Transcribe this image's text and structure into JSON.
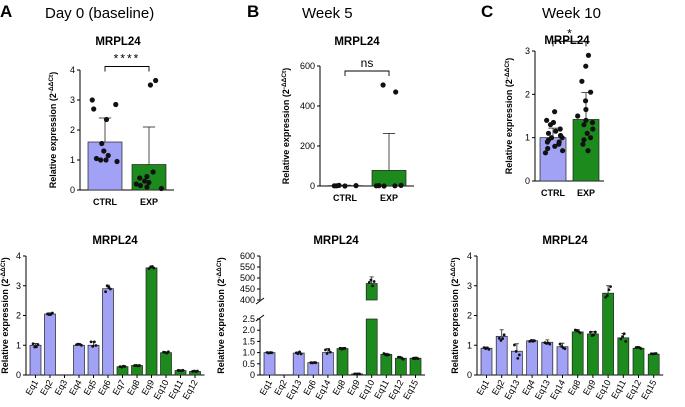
{
  "colors": {
    "ctrl": "#a1a1f6",
    "exp": "#1d8a1d",
    "point": "#111111",
    "axis": "#000000"
  },
  "ylabel": "Relative expression (2",
  "ylabel_sup": "-ΔΔCt",
  "panels": [
    {
      "label": "A",
      "heading": "Day 0 (baseline)"
    },
    {
      "label": "B",
      "heading": "Week 5"
    },
    {
      "label": "C",
      "heading": "Week 10"
    }
  ],
  "chart_data": [
    {
      "id": "A-top",
      "type": "bar",
      "title": "MRPL24",
      "categories": [
        "CTRL",
        "EXP"
      ],
      "group": [
        "ctrl",
        "exp"
      ],
      "values": [
        1.6,
        0.85
      ],
      "sd": [
        0.8,
        1.25
      ],
      "points": [
        [
          3.0,
          2.85,
          2.7,
          2.35,
          1.55,
          1.3,
          1.15,
          1.05,
          1.0,
          1.0,
          0.95
        ],
        [
          3.65,
          3.5,
          0.6,
          0.45,
          0.4,
          0.3,
          0.25,
          0.2,
          0.15,
          0.1,
          0.05
        ]
      ],
      "ylim": [
        0,
        4
      ],
      "yticks": [
        0,
        1,
        2,
        3,
        4
      ],
      "significance": "****"
    },
    {
      "id": "B-top",
      "type": "bar",
      "title": "MRPL24",
      "categories": [
        "CTRL",
        "EXP"
      ],
      "group": [
        "ctrl",
        "exp"
      ],
      "values": [
        2,
        78
      ],
      "sd": [
        2,
        185
      ],
      "points": [
        [
          3,
          2,
          1,
          1,
          0
        ],
        [
          505,
          470,
          3,
          2,
          1,
          1,
          0
        ]
      ],
      "ylim": [
        0,
        600
      ],
      "yticks": [
        0,
        200,
        400,
        600
      ],
      "significance": "ns"
    },
    {
      "id": "C-top",
      "type": "bar",
      "title": "MRPL24",
      "categories": [
        "CTRL",
        "EXP"
      ],
      "group": [
        "ctrl",
        "exp"
      ],
      "values": [
        1.0,
        1.42
      ],
      "sd": [
        0.22,
        0.62
      ],
      "points": [
        [
          1.6,
          1.4,
          1.35,
          1.3,
          1.2,
          1.15,
          1.1,
          1.05,
          1.0,
          1.0,
          0.95,
          0.9,
          0.9,
          0.85,
          0.8,
          0.75,
          0.7,
          0.65
        ],
        [
          2.9,
          2.65,
          2.3,
          2.05,
          1.85,
          1.65,
          1.5,
          1.4,
          1.35,
          1.3,
          1.2,
          1.1,
          1.0,
          0.95,
          0.85,
          0.7
        ]
      ],
      "ylim": [
        0,
        3
      ],
      "yticks": [
        0,
        1,
        2,
        3
      ],
      "significance": "*"
    },
    {
      "id": "A-bottom",
      "type": "bar",
      "title": "MRPL24",
      "categories": [
        "Eq1",
        "Eq2",
        "Eq3",
        "Eq4",
        "Eq5",
        "Eq6",
        "Eq7",
        "Eq8",
        "Eq9",
        "Eq10",
        "Eq11",
        "Eq12"
      ],
      "group": [
        "ctrl",
        "ctrl",
        "ctrl",
        "ctrl",
        "ctrl",
        "ctrl",
        "exp",
        "exp",
        "exp",
        "exp",
        "exp",
        "exp"
      ],
      "values": [
        1.0,
        2.05,
        0,
        1.0,
        1.0,
        2.9,
        0.28,
        0.32,
        3.6,
        0.75,
        0.15,
        0.12
      ],
      "sd": [
        0.06,
        0.04,
        0,
        0.05,
        0.12,
        0.12,
        0.02,
        0.02,
        0.05,
        0.03,
        0.02,
        0.02
      ],
      "ylim": [
        0,
        4
      ],
      "yticks": [
        0,
        1,
        2,
        3,
        4
      ]
    },
    {
      "id": "B-bottom",
      "type": "bar",
      "title": "MRPL24",
      "categories": [
        "Eq1",
        "Eq2",
        "Eq13",
        "Eq6",
        "Eq14",
        "Eq8",
        "Eq9",
        "Eq10",
        "Eq11",
        "Eq12",
        "Eq15"
      ],
      "group": [
        "ctrl",
        "ctrl",
        "ctrl",
        "ctrl",
        "ctrl",
        "exp",
        "exp",
        "exp",
        "exp",
        "exp",
        "exp"
      ],
      "values": [
        1.0,
        0,
        0.98,
        0.55,
        1.0,
        1.18,
        0.05,
        475,
        0.92,
        0.75,
        0.75
      ],
      "sd": [
        0.03,
        0,
        0.05,
        0.02,
        0.18,
        0.05,
        0.01,
        30,
        0.05,
        0.05,
        0.05
      ],
      "axis_break": [
        2.5,
        400
      ],
      "ylim": [
        0,
        600
      ],
      "yticks_lower": [
        0,
        0.5,
        1.0,
        1.5,
        2.0,
        2.5
      ],
      "yticks_upper": [
        400,
        450,
        500,
        550,
        600
      ]
    },
    {
      "id": "C-bottom",
      "type": "bar",
      "title": "MRPL24",
      "categories": [
        "Eq1",
        "Eq2",
        "Eq13",
        "Eq4",
        "Eq13",
        "Eq14",
        "Eq8",
        "Eq9",
        "Eq10",
        "Eq11",
        "Eq12",
        "Eq15"
      ],
      "group": [
        "ctrl",
        "ctrl",
        "ctrl",
        "ctrl",
        "ctrl",
        "ctrl",
        "exp",
        "exp",
        "exp",
        "exp",
        "exp",
        "exp"
      ],
      "values": [
        0.9,
        1.3,
        0.8,
        1.15,
        1.1,
        0.95,
        1.45,
        1.38,
        2.75,
        1.25,
        0.9,
        0.7
      ],
      "sd": [
        0.04,
        0.22,
        0.25,
        0.04,
        0.08,
        0.12,
        0.08,
        0.08,
        0.25,
        0.15,
        0.04,
        0.03
      ],
      "ylim": [
        0,
        4
      ],
      "yticks": [
        0,
        1,
        2,
        3,
        4
      ]
    }
  ]
}
